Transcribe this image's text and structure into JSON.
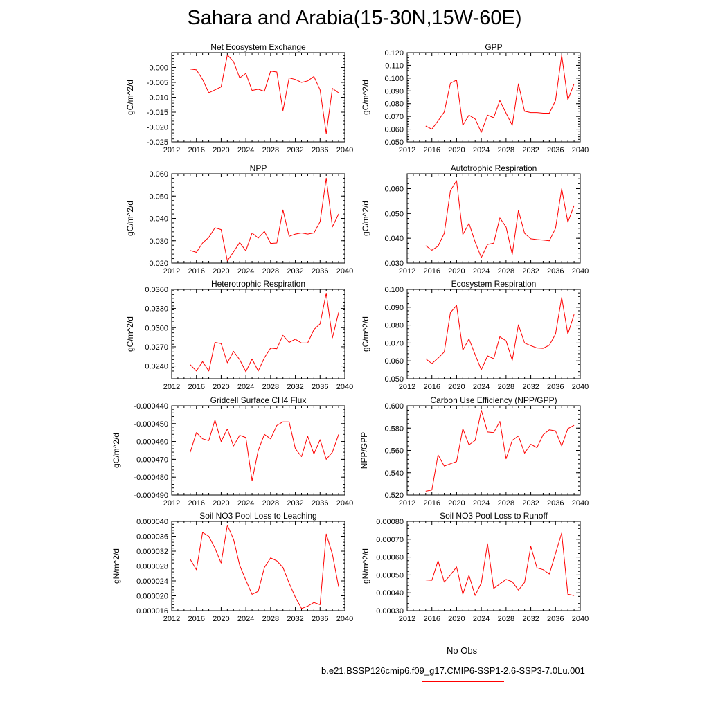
{
  "title": "Sahara and Arabia(15-30N,15W-60E)",
  "legend": {
    "obs_label": "No Obs",
    "obs_color": "#3333cc",
    "model_label": "b.e21.BSSP126cmip6.f09_g17.CMIP6-SSP1-2.6-SSP3-7.0Lu.001",
    "model_color": "#ff0000"
  },
  "chart_data": [
    {
      "type": "line",
      "title": "Net Ecosystem Exchange",
      "ylabel": "gC/m^2/d",
      "xlim": [
        2012,
        2040
      ],
      "xticks": [
        2012,
        2016,
        2020,
        2024,
        2028,
        2032,
        2036,
        2040
      ],
      "ylim": [
        -0.025,
        0.005
      ],
      "yticks": [
        -0.025,
        -0.02,
        -0.015,
        -0.01,
        -0.005,
        0.0
      ],
      "ytick_labels": [
        "-0.025",
        "-0.020",
        "-0.015",
        "-0.010",
        "-0.005",
        "0.000"
      ],
      "series": [
        {
          "color": "#ff0000",
          "x": [
            2015,
            2016,
            2017,
            2018,
            2019,
            2020,
            2021,
            2022,
            2023,
            2024,
            2025,
            2026,
            2027,
            2028,
            2029,
            2030,
            2031,
            2032,
            2033,
            2034,
            2035,
            2036,
            2037,
            2038,
            2039
          ],
          "y": [
            -0.0005,
            -0.0008,
            -0.004,
            -0.0085,
            -0.0075,
            -0.0065,
            0.0042,
            0.002,
            -0.0035,
            -0.002,
            -0.0077,
            -0.0073,
            -0.008,
            -0.0012,
            -0.0015,
            -0.0145,
            -0.0035,
            -0.004,
            -0.005,
            -0.0045,
            -0.003,
            -0.0075,
            -0.0222,
            -0.007,
            -0.0085
          ]
        }
      ]
    },
    {
      "type": "line",
      "title": "GPP",
      "ylabel": "gC/m^2/d",
      "xlim": [
        2012,
        2040
      ],
      "xticks": [
        2012,
        2016,
        2020,
        2024,
        2028,
        2032,
        2036,
        2040
      ],
      "ylim": [
        0.05,
        0.12
      ],
      "yticks": [
        0.05,
        0.06,
        0.07,
        0.08,
        0.09,
        0.1,
        0.11,
        0.12
      ],
      "ytick_labels": [
        "0.050",
        "0.060",
        "0.070",
        "0.080",
        "0.090",
        "0.100",
        "0.110",
        "0.120"
      ],
      "series": [
        {
          "color": "#ff0000",
          "x": [
            2015,
            2016,
            2017,
            2018,
            2019,
            2020,
            2021,
            2022,
            2023,
            2024,
            2025,
            2026,
            2027,
            2028,
            2029,
            2030,
            2031,
            2032,
            2033,
            2034,
            2035,
            2036,
            2037,
            2038,
            2039
          ],
          "y": [
            0.0625,
            0.06,
            0.0665,
            0.0735,
            0.096,
            0.0985,
            0.063,
            0.071,
            0.068,
            0.0575,
            0.071,
            0.069,
            0.0825,
            0.0725,
            0.063,
            0.0955,
            0.074,
            0.073,
            0.073,
            0.0725,
            0.0725,
            0.0825,
            0.118,
            0.083,
            0.0955
          ]
        }
      ]
    },
    {
      "type": "line",
      "title": "NPP",
      "ylabel": "gC/m^2/d",
      "xlim": [
        2012,
        2040
      ],
      "xticks": [
        2012,
        2016,
        2020,
        2024,
        2028,
        2032,
        2036,
        2040
      ],
      "ylim": [
        0.02,
        0.06
      ],
      "yticks": [
        0.02,
        0.03,
        0.04,
        0.05,
        0.06
      ],
      "ytick_labels": [
        "0.020",
        "0.030",
        "0.040",
        "0.050",
        "0.060"
      ],
      "series": [
        {
          "color": "#ff0000",
          "x": [
            2015,
            2016,
            2017,
            2018,
            2019,
            2020,
            2021,
            2022,
            2023,
            2024,
            2025,
            2026,
            2027,
            2028,
            2029,
            2030,
            2031,
            2032,
            2033,
            2034,
            2035,
            2036,
            2037,
            2038,
            2039
          ],
          "y": [
            0.0256,
            0.0248,
            0.029,
            0.0315,
            0.0358,
            0.035,
            0.021,
            0.025,
            0.0292,
            0.0255,
            0.0335,
            0.0312,
            0.0342,
            0.0288,
            0.029,
            0.0438,
            0.032,
            0.033,
            0.0335,
            0.033,
            0.0335,
            0.0385,
            0.058,
            0.0362,
            0.042
          ]
        }
      ]
    },
    {
      "type": "line",
      "title": "Autotrophic Respiration",
      "ylabel": "gC/m^2/d",
      "xlim": [
        2012,
        2040
      ],
      "xticks": [
        2012,
        2016,
        2020,
        2024,
        2028,
        2032,
        2036,
        2040
      ],
      "ylim": [
        0.03,
        0.066
      ],
      "yticks": [
        0.03,
        0.04,
        0.05,
        0.06
      ],
      "ytick_labels": [
        "0.030",
        "0.040",
        "0.050",
        "0.060"
      ],
      "series": [
        {
          "color": "#ff0000",
          "x": [
            2015,
            2016,
            2017,
            2018,
            2019,
            2020,
            2021,
            2022,
            2023,
            2024,
            2025,
            2026,
            2027,
            2028,
            2029,
            2030,
            2031,
            2032,
            2033,
            2034,
            2035,
            2036,
            2037,
            2038,
            2039
          ],
          "y": [
            0.037,
            0.0352,
            0.0368,
            0.042,
            0.0592,
            0.0632,
            0.0415,
            0.046,
            0.0385,
            0.0322,
            0.0375,
            0.038,
            0.0482,
            0.0445,
            0.0335,
            0.0512,
            0.042,
            0.0398,
            0.0395,
            0.0393,
            0.039,
            0.044,
            0.06,
            0.0465,
            0.0532
          ]
        }
      ]
    },
    {
      "type": "line",
      "title": "Heterotrophic Respiration",
      "ylabel": "gC/m^2/d",
      "xlim": [
        2012,
        2040
      ],
      "xticks": [
        2012,
        2016,
        2020,
        2024,
        2028,
        2032,
        2036,
        2040
      ],
      "ylim": [
        0.022,
        0.036
      ],
      "yticks": [
        0.024,
        0.027,
        0.03,
        0.033,
        0.036
      ],
      "ytick_labels": [
        "0.0240",
        "0.0270",
        "0.0300",
        "0.0330",
        "0.0360"
      ],
      "series": [
        {
          "color": "#ff0000",
          "x": [
            2015,
            2016,
            2017,
            2018,
            2019,
            2020,
            2021,
            2022,
            2023,
            2024,
            2025,
            2026,
            2027,
            2028,
            2029,
            2030,
            2031,
            2032,
            2033,
            2034,
            2035,
            2036,
            2037,
            2038,
            2039
          ],
          "y": [
            0.0242,
            0.0232,
            0.0247,
            0.0232,
            0.0277,
            0.0275,
            0.0245,
            0.0263,
            0.025,
            0.0231,
            0.0251,
            0.0232,
            0.0253,
            0.0268,
            0.0267,
            0.0288,
            0.0277,
            0.0282,
            0.0276,
            0.0276,
            0.0297,
            0.0306,
            0.0354,
            0.0284,
            0.0324
          ]
        }
      ]
    },
    {
      "type": "line",
      "title": "Ecosystem Respiration",
      "ylabel": "gC/m^2/d",
      "xlim": [
        2012,
        2040
      ],
      "xticks": [
        2012,
        2016,
        2020,
        2024,
        2028,
        2032,
        2036,
        2040
      ],
      "ylim": [
        0.05,
        0.1
      ],
      "yticks": [
        0.05,
        0.06,
        0.07,
        0.08,
        0.09,
        0.1
      ],
      "ytick_labels": [
        "0.050",
        "0.060",
        "0.070",
        "0.080",
        "0.090",
        "0.100"
      ],
      "series": [
        {
          "color": "#ff0000",
          "x": [
            2015,
            2016,
            2017,
            2018,
            2019,
            2020,
            2021,
            2022,
            2023,
            2024,
            2025,
            2026,
            2027,
            2028,
            2029,
            2030,
            2031,
            2032,
            2033,
            2034,
            2035,
            2036,
            2037,
            2038,
            2039
          ],
          "y": [
            0.0612,
            0.0585,
            0.0615,
            0.065,
            0.087,
            0.091,
            0.066,
            0.0723,
            0.0635,
            0.055,
            0.0628,
            0.0612,
            0.0735,
            0.0712,
            0.0603,
            0.0802,
            0.07,
            0.0685,
            0.0672,
            0.067,
            0.0688,
            0.075,
            0.0955,
            0.075,
            0.086
          ]
        }
      ]
    },
    {
      "type": "line",
      "title": "Gridcell Surface CH4 Flux",
      "ylabel": "gC/m^2/d",
      "xlim": [
        2012,
        2040
      ],
      "xticks": [
        2012,
        2016,
        2020,
        2024,
        2028,
        2032,
        2036,
        2040
      ],
      "ylim": [
        -0.00049,
        -0.00044
      ],
      "yticks": [
        -0.00049,
        -0.00048,
        -0.00047,
        -0.00046,
        -0.00045,
        -0.00044
      ],
      "ytick_labels": [
        "-0.000490",
        "-0.000480",
        "-0.000470",
        "-0.000460",
        "-0.000450",
        "-0.000440"
      ],
      "series": [
        {
          "color": "#ff0000",
          "x": [
            2015,
            2016,
            2017,
            2018,
            2019,
            2020,
            2021,
            2022,
            2023,
            2024,
            2025,
            2026,
            2027,
            2028,
            2029,
            2030,
            2031,
            2032,
            2033,
            2034,
            2035,
            2036,
            2037,
            2038,
            2039
          ],
          "y": [
            -0.000466,
            -0.000455,
            -0.0004585,
            -0.0004595,
            -0.000448,
            -0.00046,
            -0.000453,
            -0.0004625,
            -0.0004565,
            -0.0004578,
            -0.000482,
            -0.000465,
            -0.000456,
            -0.0004585,
            -0.000451,
            -0.000449,
            -0.000449,
            -0.000464,
            -0.0004685,
            -0.000457,
            -0.000467,
            -0.000459,
            -0.00047,
            -0.000466,
            -0.000456
          ]
        }
      ]
    },
    {
      "type": "line",
      "title": "Carbon Use Efficiency (NPP/GPP)",
      "ylabel": "NPP/GPP",
      "xlim": [
        2012,
        2040
      ],
      "xticks": [
        2012,
        2016,
        2020,
        2024,
        2028,
        2032,
        2036,
        2040
      ],
      "ylim": [
        0.52,
        0.6
      ],
      "yticks": [
        0.52,
        0.54,
        0.56,
        0.58,
        0.6
      ],
      "ytick_labels": [
        "0.520",
        "0.540",
        "0.560",
        "0.580",
        "0.600"
      ],
      "series": [
        {
          "color": "#ff0000",
          "x": [
            2015,
            2016,
            2017,
            2018,
            2019,
            2020,
            2021,
            2022,
            2023,
            2024,
            2025,
            2026,
            2027,
            2028,
            2029,
            2030,
            2031,
            2032,
            2033,
            2034,
            2035,
            2036,
            2037,
            2038,
            2039
          ],
          "y": [
            0.5235,
            0.5245,
            0.556,
            0.546,
            0.548,
            0.55,
            0.5795,
            0.565,
            0.569,
            0.596,
            0.5765,
            0.576,
            0.586,
            0.5525,
            0.569,
            0.573,
            0.5575,
            0.5655,
            0.5625,
            0.574,
            0.5785,
            0.5775,
            0.564,
            0.5795,
            0.5825
          ]
        }
      ]
    },
    {
      "type": "line",
      "title": "Soil NO3 Pool Loss to Leaching",
      "ylabel": "gN/m^2/d",
      "xlim": [
        2012,
        2040
      ],
      "xticks": [
        2012,
        2016,
        2020,
        2024,
        2028,
        2032,
        2036,
        2040
      ],
      "ylim": [
        1.6e-05,
        4e-05
      ],
      "yticks": [
        1.6e-05,
        2e-05,
        2.4e-05,
        2.8e-05,
        3.2e-05,
        3.6e-05,
        4e-05
      ],
      "ytick_labels": [
        "0.000016",
        "0.000020",
        "0.000024",
        "0.000028",
        "0.000032",
        "0.000036",
        "0.000040"
      ],
      "series": [
        {
          "color": "#ff0000",
          "x": [
            2015,
            2016,
            2017,
            2018,
            2019,
            2020,
            2021,
            2022,
            2023,
            2024,
            2025,
            2026,
            2027,
            2028,
            2029,
            2030,
            2031,
            2032,
            2033,
            2034,
            2035,
            2036,
            2037,
            2038,
            2039
          ],
          "y": [
            2.98e-05,
            2.7e-05,
            3.7e-05,
            3.6e-05,
            3.28e-05,
            2.88e-05,
            3.9e-05,
            3.52e-05,
            2.82e-05,
            2.42e-05,
            2.04e-05,
            2.12e-05,
            2.76e-05,
            3.02e-05,
            2.94e-05,
            2.76e-05,
            2.34e-05,
            1.96e-05,
            1.66e-05,
            1.72e-05,
            1.82e-05,
            1.76e-05,
            3.66e-05,
            3.12e-05,
            2.24e-05
          ]
        }
      ]
    },
    {
      "type": "line",
      "title": "Soil NO3 Pool Loss to Runoff",
      "ylabel": "gN/m^2/d",
      "xlim": [
        2012,
        2040
      ],
      "xticks": [
        2012,
        2016,
        2020,
        2024,
        2028,
        2032,
        2036,
        2040
      ],
      "ylim": [
        0.0003,
        0.0008
      ],
      "yticks": [
        0.0003,
        0.0004,
        0.0005,
        0.0006,
        0.0007,
        0.0008
      ],
      "ytick_labels": [
        "0.00030",
        "0.00040",
        "0.00050",
        "0.00060",
        "0.00070",
        "0.00080"
      ],
      "series": [
        {
          "color": "#ff0000",
          "x": [
            2015,
            2016,
            2017,
            2018,
            2019,
            2020,
            2021,
            2022,
            2023,
            2024,
            2025,
            2026,
            2027,
            2028,
            2029,
            2030,
            2031,
            2032,
            2033,
            2034,
            2035,
            2036,
            2037,
            2038,
            2039
          ],
          "y": [
            0.000472,
            0.00047,
            0.00058,
            0.00046,
            0.0005,
            0.000545,
            0.000392,
            0.000498,
            0.000385,
            0.000455,
            0.000675,
            0.000425,
            0.00045,
            0.000475,
            0.000462,
            0.000415,
            0.000458,
            0.00066,
            0.00054,
            0.00053,
            0.000505,
            0.00062,
            0.000735,
            0.000392,
            0.000385
          ]
        }
      ]
    }
  ]
}
